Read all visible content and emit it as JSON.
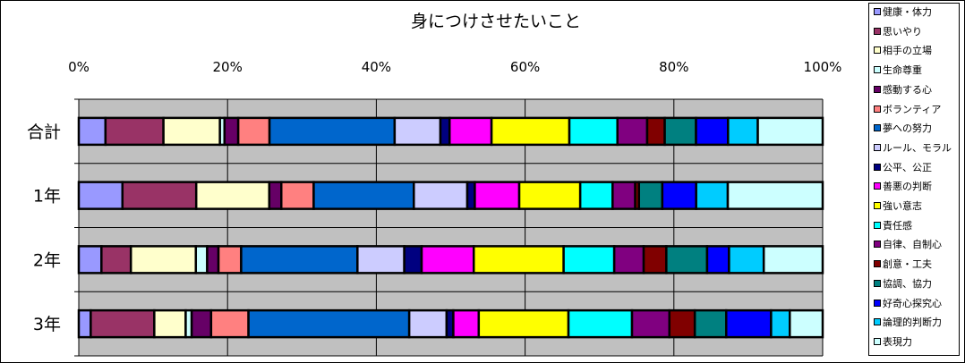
{
  "chart_data": {
    "type": "bar",
    "orientation": "horizontal",
    "stacked": "percent",
    "title": "身につけさせたいこと",
    "xlim": [
      0,
      100
    ],
    "xticks": [
      "0%",
      "20%",
      "40%",
      "60%",
      "80%",
      "100%"
    ],
    "grid": true,
    "legend_position": "right",
    "categories": [
      "合計",
      "1年",
      "2年",
      "3年"
    ],
    "series": [
      {
        "name": "健康・体力",
        "color": "#9999FF",
        "values": [
          3.5,
          5.8,
          3.0,
          1.6
        ]
      },
      {
        "name": "思いやり",
        "color": "#993366",
        "values": [
          7.6,
          9.8,
          3.9,
          8.5
        ]
      },
      {
        "name": "相手の立場",
        "color": "#FFFFCC",
        "values": [
          7.4,
          9.7,
          8.6,
          4.2
        ]
      },
      {
        "name": "生命尊重",
        "color": "#CCFFFF",
        "values": [
          0.6,
          0.0,
          1.5,
          0.8
        ]
      },
      {
        "name": "感動する心",
        "color": "#660066",
        "values": [
          1.8,
          1.6,
          1.5,
          2.6
        ]
      },
      {
        "name": "ボランティア",
        "color": "#FF8080",
        "values": [
          4.1,
          4.3,
          3.0,
          5.0
        ]
      },
      {
        "name": "夢への努力",
        "color": "#0066CC",
        "values": [
          16.4,
          13.3,
          15.4,
          21.5
        ]
      },
      {
        "name": "ルール、モラル",
        "color": "#CCCCFF",
        "values": [
          6.0,
          7.1,
          6.2,
          5.0
        ]
      },
      {
        "name": "公平、公正",
        "color": "#000080",
        "values": [
          1.2,
          1.0,
          2.3,
          0.9
        ]
      },
      {
        "name": "善悪の判断",
        "color": "#FF00FF",
        "values": [
          5.5,
          5.9,
          6.9,
          3.4
        ]
      },
      {
        "name": "強い意志",
        "color": "#FFFF00",
        "values": [
          10.2,
          8.1,
          11.9,
          12.0
        ]
      },
      {
        "name": "責任感",
        "color": "#00FFFF",
        "values": [
          6.3,
          4.3,
          6.7,
          8.5
        ]
      },
      {
        "name": "自律、自制心",
        "color": "#800080",
        "values": [
          3.9,
          3.0,
          3.9,
          5.0
        ]
      },
      {
        "name": "創意・工夫",
        "color": "#800000",
        "values": [
          2.3,
          0.5,
          3.0,
          3.4
        ]
      },
      {
        "name": "協調、協力",
        "color": "#008080",
        "values": [
          4.1,
          3.1,
          5.4,
          4.2
        ]
      },
      {
        "name": "好奇心探究心",
        "color": "#0000FF",
        "values": [
          4.2,
          4.5,
          2.9,
          6.0
        ]
      },
      {
        "name": "論理的判断力",
        "color": "#00CCFF",
        "values": [
          3.9,
          4.2,
          4.6,
          2.5
        ]
      },
      {
        "name": "表現力",
        "color": "#CCFFFF",
        "values": [
          8.5,
          12.6,
          7.8,
          4.4
        ]
      }
    ]
  }
}
